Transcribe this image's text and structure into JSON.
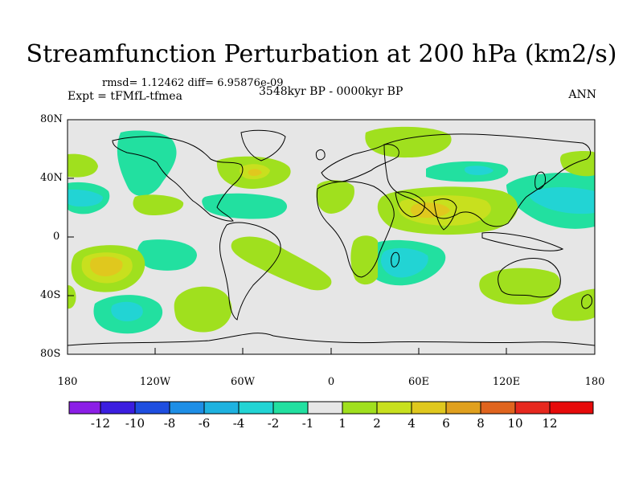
{
  "title": "Streamfunction Perturbation at 200 hPa (km2/s)",
  "stats": "rmsd= 1.12462 diff= 6.95876e-09",
  "expt": "Expt = tFMfL-tfmea",
  "period": "3548kyr BP - 0000kyr BP",
  "season": "ANN",
  "lat_labels": [
    "80N",
    "40N",
    "0",
    "40S",
    "80S"
  ],
  "lon_labels": [
    "180",
    "120W",
    "60W",
    "0",
    "60E",
    "120E",
    "180"
  ],
  "colorbar": {
    "labels": [
      "-12",
      "-10",
      "-8",
      "-6",
      "-4",
      "-2",
      "-1",
      "1",
      "2",
      "4",
      "6",
      "8",
      "10",
      "12"
    ],
    "colors": [
      "#8b1ee6",
      "#3b1ee0",
      "#1e4ee0",
      "#1e8ee6",
      "#1eb2e0",
      "#22d4d4",
      "#22e0a0",
      "#e6e6e6",
      "#a0e01e",
      "#c8e01e",
      "#e0c81e",
      "#e0a01e",
      "#e0641e",
      "#e6281e",
      "#e60a0a"
    ]
  },
  "colors": {
    "background": "#e6e6e6",
    "positive_1": "#a0e01e",
    "positive_2": "#c8e01e",
    "positive_3": "#e0c81e",
    "negative_1": "#22e0a0",
    "negative_2": "#22d4d4"
  }
}
